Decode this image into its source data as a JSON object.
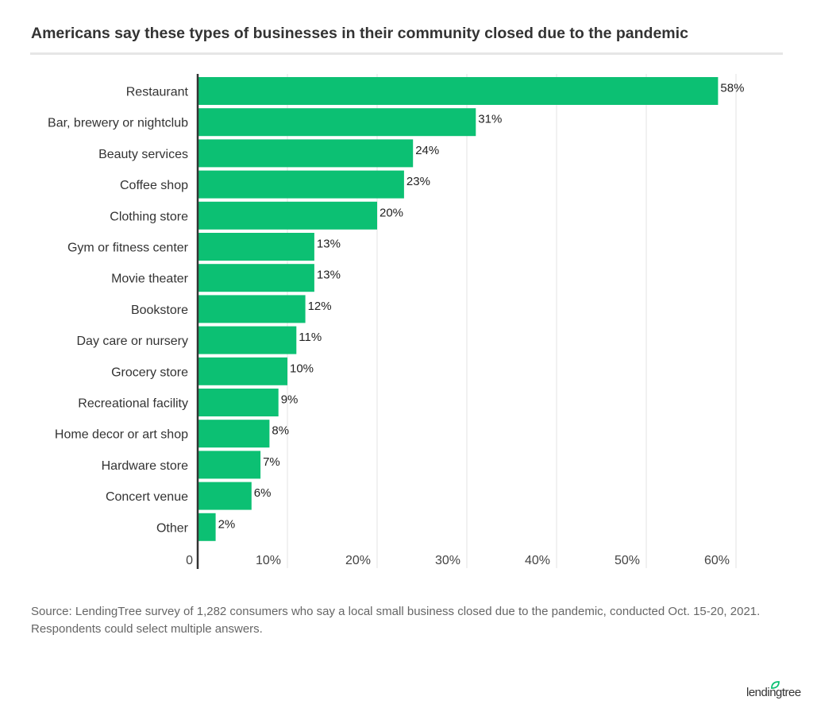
{
  "title": "Americans say these types of businesses in their community closed due to the pandemic",
  "source": "Source: LendingTree survey of 1,282 consumers who say a local small business closed due to the pandemic, conducted Oct. 15-20, 2021. Respondents could select multiple answers.",
  "logo": "lendingtree",
  "colors": {
    "bar": "#0cc073",
    "axis": "#333333",
    "grid": "#e3e3e3"
  },
  "chart_data": {
    "type": "bar",
    "orientation": "horizontal",
    "categories": [
      "Restaurant",
      "Bar, brewery or nightclub",
      "Beauty services",
      "Coffee shop",
      "Clothing store",
      "Gym or fitness center",
      "Movie theater",
      "Bookstore",
      "Day care or nursery",
      "Grocery store",
      "Recreational facility",
      "Home decor or art shop",
      "Hardware store",
      "Concert venue",
      "Other"
    ],
    "values": [
      58,
      31,
      24,
      23,
      20,
      13,
      13,
      12,
      11,
      10,
      9,
      8,
      7,
      6,
      2
    ],
    "data_labels": [
      "58%",
      "31%",
      "24%",
      "23%",
      "20%",
      "13%",
      "13%",
      "12%",
      "11%",
      "10%",
      "9%",
      "8%",
      "7%",
      "6%",
      "2%"
    ],
    "xlim": [
      0,
      60
    ],
    "xticks": [
      "0",
      "10%",
      "20%",
      "30%",
      "40%",
      "50%",
      "60%"
    ],
    "grid": true,
    "title": "Americans say these types of businesses in their community closed due to the pandemic"
  }
}
